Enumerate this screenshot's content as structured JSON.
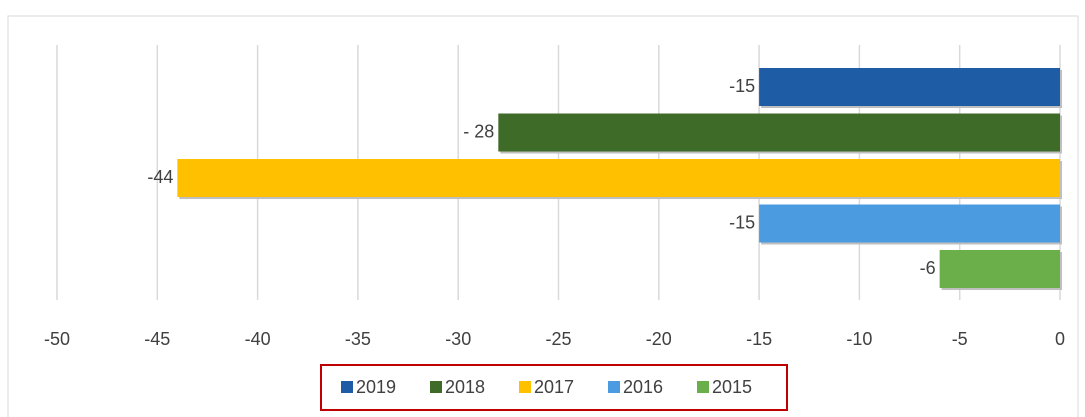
{
  "chart_data": {
    "type": "bar",
    "orientation": "horizontal",
    "series": [
      {
        "name": "2019",
        "color": "#1f5ca6",
        "values": [
          -15
        ]
      },
      {
        "name": "2018",
        "color": "#3e6b27",
        "values": [
          -28
        ],
        "value_labels": [
          "- 28"
        ]
      },
      {
        "name": "2017",
        "color": "#ffc000",
        "values": [
          -44
        ]
      },
      {
        "name": "2016",
        "color": "#4b9be0",
        "values": [
          -15
        ]
      },
      {
        "name": "2015",
        "color": "#6aaf4a",
        "values": [
          -6
        ]
      }
    ],
    "xlim": [
      -50,
      0
    ],
    "xticks": [
      -50,
      -45,
      -40,
      -35,
      -30,
      -25,
      -20,
      -15,
      -10,
      -5,
      0
    ],
    "grid": true,
    "legend": "bottom"
  }
}
